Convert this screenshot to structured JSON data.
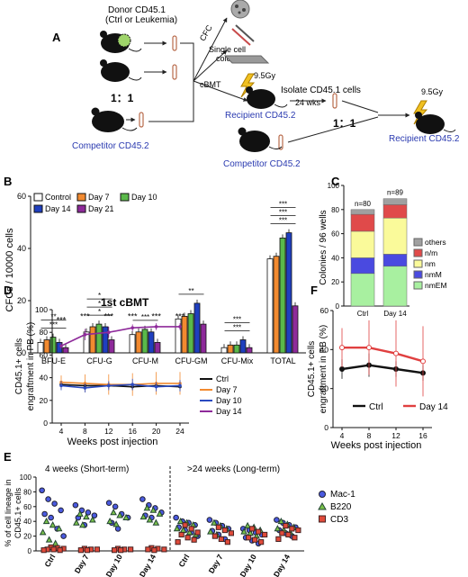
{
  "panelA": {
    "letter": "A",
    "donor_line1": "Donor CD45.1",
    "donor_line2": "(Ctrl or Leukemia)",
    "ratio1": "1：1",
    "competitor1": "Competitor CD45.2",
    "cfc": "CFC",
    "single_colony_1": "Single cell",
    "single_colony_2": "colony",
    "cbmt": "cBMT",
    "gy1": "9.5Gy",
    "recipient1": "Recipient CD45.2",
    "isolate": "Isolate CD45.1 cells",
    "wks": "24 wks",
    "ratio2": "1：1",
    "competitor2": "Competitor CD45.2",
    "gy2": "9.5Gy",
    "recipient2": "Recipient CD45.2"
  },
  "panelB": {
    "letter": "B",
    "chart_data": {
      "type": "bar",
      "ylabel": "CFCs / 10000 cells",
      "ylim": [
        0,
        60
      ],
      "yticks": [
        "0",
        "20",
        "40",
        "60"
      ],
      "categories": [
        "BFU-E",
        "CFU-G",
        "CFU-M",
        "CFU-GM",
        "CFU-Mix",
        "TOTAL"
      ],
      "legend_position": "top-left",
      "series": [
        {
          "name": "Control",
          "color": "#ffffff",
          "values": [
            4,
            8,
            7,
            13,
            2,
            36
          ]
        },
        {
          "name": "Day 7",
          "color": "#f28a30",
          "values": [
            5,
            10,
            8,
            14,
            3,
            37
          ]
        },
        {
          "name": "Day 10",
          "color": "#5ab94a",
          "values": [
            6,
            11,
            9,
            15,
            3,
            44
          ]
        },
        {
          "name": "Day 14",
          "color": "#1f3fbf",
          "values": [
            4,
            10,
            8,
            19,
            5,
            46
          ]
        },
        {
          "name": "Day 21",
          "color": "#8e2a9a",
          "values": [
            2,
            5,
            4,
            11,
            2,
            18
          ]
        }
      ],
      "significance": [
        {
          "category": "BFU-E",
          "labels": [
            "***",
            "**"
          ]
        },
        {
          "category": "CFU-G",
          "labels": [
            "*",
            "*",
            "*"
          ]
        },
        {
          "category": "CFU-M",
          "labels": [
            "***"
          ]
        },
        {
          "category": "CFU-GM",
          "labels": [
            "**"
          ]
        },
        {
          "category": "CFU-Mix",
          "labels": [
            "***",
            "***"
          ]
        },
        {
          "category": "TOTAL",
          "labels": [
            "***",
            "***",
            "***"
          ]
        }
      ]
    }
  },
  "panelC": {
    "letter": "C",
    "chart_data": {
      "type": "bar",
      "ylabel": "Colonies / 96 wells",
      "ylim": [
        0,
        100
      ],
      "yticks": [
        "0",
        "20",
        "40",
        "60",
        "80",
        "100"
      ],
      "categories": [
        "Ctrl",
        "Day 14"
      ],
      "totals": [
        "n=80",
        "n=89"
      ],
      "series": [
        {
          "name": "nmEM",
          "color": "#a8f0a0",
          "values": [
            27,
            33
          ]
        },
        {
          "name": "nmM",
          "color": "#4a4ae0",
          "values": [
            13,
            10
          ]
        },
        {
          "name": "nm",
          "color": "#fafa9a",
          "values": [
            22,
            30
          ]
        },
        {
          "name": "n/m",
          "color": "#e04a4a",
          "values": [
            14,
            11
          ]
        },
        {
          "name": "others",
          "color": "#a0a0a0",
          "values": [
            4,
            5
          ]
        }
      ]
    }
  },
  "panelD": {
    "letter": "D",
    "chart_data": {
      "type": "line",
      "title": "1st cBMT",
      "xlabel": "Weeks post injection",
      "ylabel": "CD45.1+ cells engraftment in PB (%)",
      "x": [
        4,
        8,
        12,
        16,
        20,
        24
      ],
      "ylim": [
        0,
        100
      ],
      "yticks": [
        "0",
        "20",
        "40",
        "60",
        "80",
        "100"
      ],
      "series": [
        {
          "name": "Ctrl",
          "color": "#111111",
          "values": [
            34,
            33,
            33,
            32,
            33,
            32
          ],
          "err": [
            3,
            3,
            3,
            3,
            3,
            3
          ]
        },
        {
          "name": "Day 7",
          "color": "#f28a30",
          "values": [
            36,
            35,
            34,
            34,
            35,
            35
          ],
          "err": [
            6,
            8,
            9,
            10,
            10,
            10
          ]
        },
        {
          "name": "Day 10",
          "color": "#2a4ac0",
          "values": [
            33,
            31,
            33,
            34,
            32,
            33
          ],
          "err": [
            4,
            4,
            4,
            5,
            4,
            5
          ]
        },
        {
          "name": "Day 14",
          "color": "#8e2a9a",
          "values": [
            68,
            78,
            80,
            84,
            85,
            85
          ],
          "err": [
            3,
            5,
            5,
            3,
            3,
            3
          ]
        }
      ],
      "stars": [
        "***",
        "***",
        "***",
        "***",
        "***",
        "***"
      ]
    }
  },
  "panelF": {
    "letter": "F",
    "chart_data": {
      "type": "line",
      "xlabel": "Weeks post injection",
      "ylabel": "CD45.1+ cells engraftment in PB (%)",
      "x": [
        4,
        8,
        12,
        16
      ],
      "ylim": [
        0,
        60
      ],
      "yticks": [
        "0",
        "20",
        "40",
        "60"
      ],
      "series": [
        {
          "name": "Ctrl",
          "color": "#111111",
          "values": [
            30,
            32,
            30,
            28
          ],
          "err": [
            5,
            6,
            4,
            4
          ]
        },
        {
          "name": "Day 14",
          "color": "#e04040",
          "values": [
            41,
            41,
            38,
            34
          ],
          "err": [
            10,
            14,
            17,
            18
          ]
        }
      ]
    }
  },
  "panelE": {
    "letter": "E",
    "chart_data": {
      "type": "scatter",
      "ylabel": "% of cell lineage in CD45.1+ cells",
      "ylim": [
        0,
        100
      ],
      "yticks": [
        "0",
        "20",
        "40",
        "60",
        "80",
        "100"
      ],
      "section_short": "4 weeks (Short-term)",
      "section_long": ">24 weeks (Long-term)",
      "categories": [
        "Ctrl",
        "Day 7",
        "Day 10",
        "Day 14",
        "Ctrl",
        "Day 7",
        "Day 10",
        "Day 14"
      ],
      "series": [
        {
          "name": "Mac-1",
          "color": "#4a5ae0",
          "marker": "circle",
          "groups": [
            [
              82,
              70,
              64,
              55,
              50,
              45,
              30,
              20
            ],
            [
              62,
              55,
              52,
              48,
              45,
              35
            ],
            [
              65,
              60,
              50,
              45,
              38,
              30
            ],
            [
              70,
              62,
              58,
              52,
              48,
              45
            ],
            [
              45,
              40,
              38,
              35,
              32,
              28,
              25,
              20
            ],
            [
              42,
              38,
              34,
              30,
              27,
              22,
              16
            ],
            [
              30,
              28,
              25,
              22,
              18,
              14,
              10
            ],
            [
              42,
              38,
              35,
              32,
              28,
              24,
              20
            ]
          ]
        },
        {
          "name": "B220",
          "color": "#7ac24a",
          "marker": "triangle",
          "groups": [
            [
              40,
              35,
              30,
              25,
              15,
              10
            ],
            [
              50,
              46,
              42,
              38,
              35
            ],
            [
              52,
              48,
              45,
              40,
              36
            ],
            [
              58,
              55,
              50,
              46,
              42,
              38
            ],
            [
              40,
              38,
              35,
              30,
              28,
              25,
              22
            ],
            [
              38,
              34,
              30,
              26,
              22
            ],
            [
              34,
              32,
              28,
              26,
              24,
              20
            ],
            [
              40,
              36,
              32,
              30,
              28,
              25
            ]
          ]
        },
        {
          "name": "CD3",
          "color": "#e04a3a",
          "marker": "square",
          "groups": [
            [
              5,
              4,
              3,
              2,
              2,
              1,
              1
            ],
            [
              3,
              2,
              2,
              1,
              1
            ],
            [
              3,
              2,
              2,
              1,
              1
            ],
            [
              4,
              3,
              2,
              2,
              1
            ],
            [
              35,
              30,
              25,
              22,
              18,
              15,
              12
            ],
            [
              32,
              28,
              24,
              20,
              16,
              12
            ],
            [
              30,
              26,
              22,
              18,
              15,
              12
            ],
            [
              34,
              30,
              28,
              24,
              22,
              18,
              16
            ]
          ]
        }
      ]
    }
  }
}
